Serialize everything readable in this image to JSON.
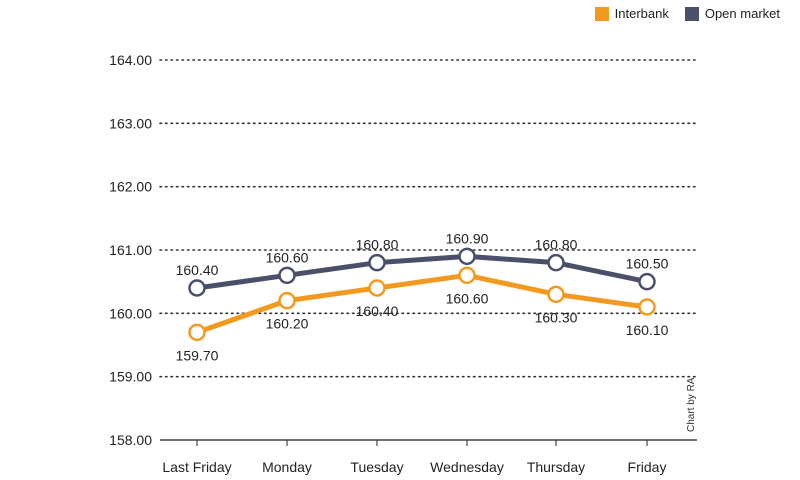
{
  "legend": [
    {
      "label": "Interbank",
      "color": "#f29a20"
    },
    {
      "label": "Open market",
      "color": "#4a506a"
    }
  ],
  "credit": "Chart by RA",
  "chart_data": {
    "type": "line",
    "title": "",
    "xlabel": "",
    "ylabel": "",
    "categories": [
      "Last Friday",
      "Monday",
      "Tuesday",
      "Wednesday",
      "Thursday",
      "Friday"
    ],
    "ylim": [
      158,
      164
    ],
    "yticks": [
      "158.00",
      "159.00",
      "160.00",
      "161.00",
      "162.00",
      "163.00",
      "164.00"
    ],
    "grid": true,
    "legend_position": "top-right",
    "series": [
      {
        "name": "Open market",
        "color": "#4a506a",
        "values": [
          160.4,
          160.6,
          160.8,
          160.9,
          160.8,
          160.5
        ],
        "labels": [
          "160.40",
          "160.60",
          "160.80",
          "160.90",
          "160.80",
          "160.50"
        ]
      },
      {
        "name": "Interbank",
        "color": "#f29a20",
        "values": [
          159.7,
          160.2,
          160.4,
          160.6,
          160.3,
          160.1
        ],
        "labels": [
          "159.70",
          "160.20",
          "160.40",
          "160.60",
          "160.30",
          "160.10"
        ]
      }
    ]
  }
}
